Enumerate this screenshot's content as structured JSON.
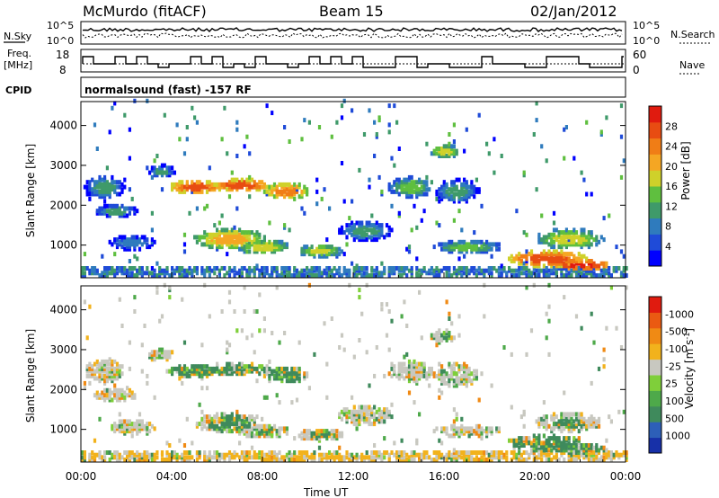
{
  "header": {
    "station": "McMurdo (fitACF)",
    "beam": "Beam 15",
    "date": "02/Jan/2012"
  },
  "strip": {
    "nsky_label": "N.Sky",
    "nsky_ticks": [
      "10^5",
      "10^0"
    ],
    "nsearch_label": "N.Search",
    "nsearch_ticks": [
      "10^5",
      "10^0"
    ],
    "freq_label_top": "Freq.",
    "freq_label_bottom": "[MHz]",
    "freq_ticks": [
      "18",
      "8"
    ],
    "nave_label": "Nave",
    "nave_ticks": [
      "60",
      "0"
    ],
    "cpid_label": "CPID",
    "cpid_text": "normalsound (fast) -157 RF"
  },
  "chart_data": [
    {
      "type": "heatmap",
      "name": "power",
      "ylabel": "Slant Range [km]",
      "ylim": [
        180,
        4600
      ],
      "y_ticks": [
        "1000",
        "2000",
        "3000",
        "4000"
      ],
      "x_ticks": [
        "00:00",
        "04:00",
        "08:00",
        "12:00",
        "16:00",
        "20:00",
        "00:00"
      ],
      "colorbar": {
        "label": "Power [dB]",
        "ticks": [
          "4",
          "8",
          "12",
          "16",
          "20",
          "24",
          "28"
        ],
        "colors": [
          "#0000ff",
          "#1f4bd8",
          "#2f7bbd",
          "#3f9a6a",
          "#5fbf3f",
          "#cfd12a",
          "#f5a623",
          "#f07d16",
          "#e84c12",
          "#e01b0f"
        ]
      }
    },
    {
      "type": "heatmap",
      "name": "velocity",
      "ylabel": "Slant Range [km]",
      "ylim": [
        180,
        4600
      ],
      "y_ticks": [
        "1000",
        "2000",
        "3000",
        "4000"
      ],
      "x_ticks": [
        "00:00",
        "04:00",
        "08:00",
        "12:00",
        "16:00",
        "20:00",
        "00:00"
      ],
      "xlabel": "Time UT",
      "colorbar": {
        "label": "Velocity [m s^-1]",
        "ticks": [
          "1000",
          "500",
          "100",
          "25",
          "-25",
          "-100",
          "-500",
          "-1000"
        ],
        "colors": [
          "#1730a8",
          "#2d5fb8",
          "#3f8a5c",
          "#4ea94a",
          "#7fcf3a",
          "#c8c8c0",
          "#f2b21c",
          "#f08a14",
          "#ea5a12",
          "#e01b0f"
        ]
      }
    }
  ]
}
